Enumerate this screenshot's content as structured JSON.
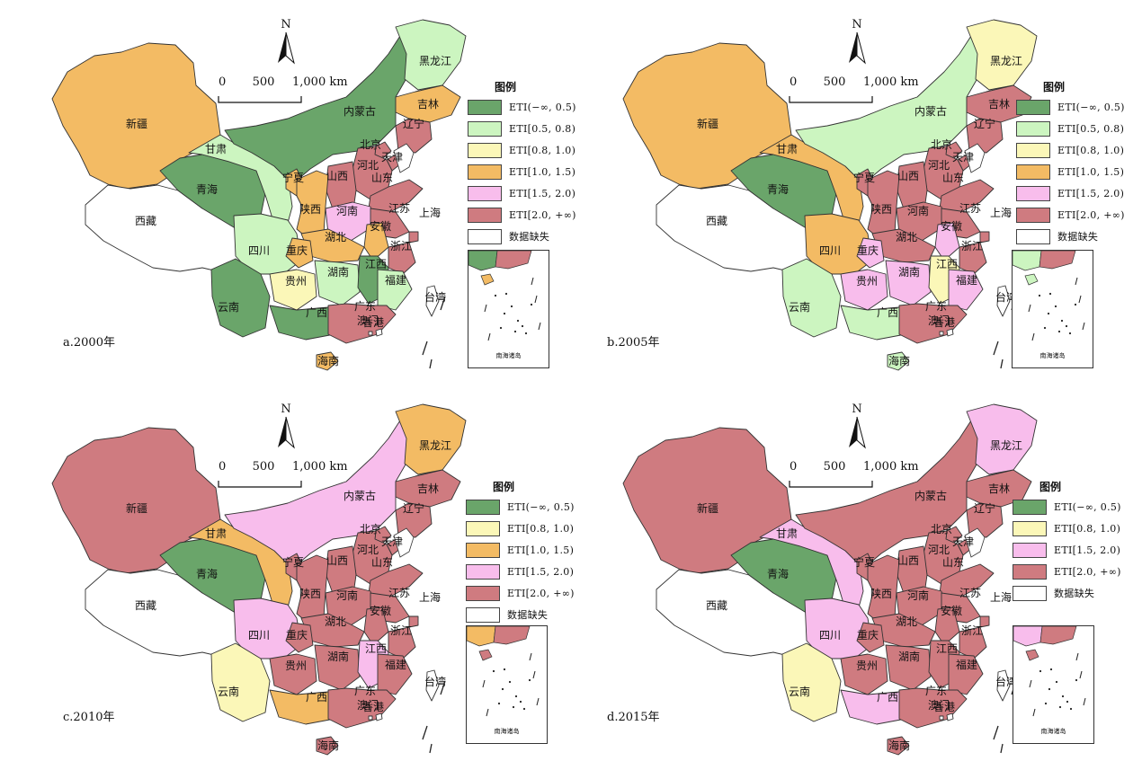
{
  "legend_title": "图例",
  "north_label": "N",
  "scale": {
    "labels": [
      "0",
      "500",
      "1,000 km"
    ]
  },
  "inset_caption": "南海诸岛",
  "categories": {
    "c1": {
      "label": "ETI(−∞, 0.5)",
      "color": "#6aa56a"
    },
    "c2": {
      "label": "ETI[0.5, 0.8)",
      "color": "#ccf5c0"
    },
    "c3": {
      "label": "ETI[0.8, 1.0)",
      "color": "#fbf7b8"
    },
    "c4": {
      "label": "ETI[1.0, 1.5)",
      "color": "#f3bb64"
    },
    "c5": {
      "label": "ETI[1.5, 2.0)",
      "color": "#f8bdec"
    },
    "c6": {
      "label": "ETI[2.0, +∞)",
      "color": "#cf7b80"
    },
    "nd": {
      "label": "数据缺失",
      "color": "#ffffff"
    }
  },
  "provinces": [
    "新疆",
    "西藏",
    "青海",
    "甘肃",
    "内蒙古",
    "黑龙江",
    "吉林",
    "辽宁",
    "北京",
    "天津",
    "河北",
    "山西",
    "山东",
    "宁夏",
    "陕西",
    "河南",
    "江苏",
    "上海",
    "安徽",
    "湖北",
    "四川",
    "重庆",
    "浙江",
    "湖南",
    "江西",
    "贵州",
    "福建",
    "云南",
    "广西",
    "广东",
    "台湾",
    "香港",
    "澳门",
    "海南"
  ],
  "panels": [
    {
      "label": "a.2000年",
      "legend": [
        "c1",
        "c2",
        "c3",
        "c4",
        "c5",
        "c6",
        "nd"
      ],
      "values": {
        "新疆": "c4",
        "西藏": "nd",
        "青海": "c1",
        "甘肃": "c2",
        "内蒙古": "c1",
        "黑龙江": "c2",
        "吉林": "c4",
        "辽宁": "c6",
        "北京": "c6",
        "天津": "c6",
        "河北": "c6",
        "山西": "c6",
        "山东": "c6",
        "宁夏": "c4",
        "陕西": "c4",
        "河南": "c5",
        "江苏": "c6",
        "上海": "c6",
        "安徽": "c4",
        "湖北": "c4",
        "四川": "c2",
        "重庆": "c4",
        "浙江": "c6",
        "湖南": "c2",
        "江西": "c1",
        "贵州": "c3",
        "福建": "c2",
        "云南": "c1",
        "广西": "c1",
        "广东": "c6",
        "台湾": "nd",
        "香港": "nd",
        "澳门": "nd",
        "海南": "c4"
      }
    },
    {
      "label": "b.2005年",
      "legend": [
        "c1",
        "c2",
        "c3",
        "c4",
        "c5",
        "c6",
        "nd"
      ],
      "values": {
        "新疆": "c4",
        "西藏": "nd",
        "青海": "c1",
        "甘肃": "c4",
        "内蒙古": "c2",
        "黑龙江": "c3",
        "吉林": "c6",
        "辽宁": "c6",
        "北京": "c6",
        "天津": "c6",
        "河北": "c6",
        "山西": "c6",
        "山东": "c6",
        "宁夏": "c6",
        "陕西": "c6",
        "河南": "c6",
        "江苏": "c6",
        "上海": "c6",
        "安徽": "c5",
        "湖北": "c6",
        "四川": "c4",
        "重庆": "c5",
        "浙江": "c6",
        "湖南": "c5",
        "江西": "c3",
        "贵州": "c5",
        "福建": "c5",
        "云南": "c2",
        "广西": "c2",
        "广东": "c6",
        "台湾": "nd",
        "香港": "nd",
        "澳门": "nd",
        "海南": "c2"
      }
    },
    {
      "label": "c.2010年",
      "legend": [
        "c1",
        "c3",
        "c4",
        "c5",
        "c6",
        "nd"
      ],
      "values": {
        "新疆": "c6",
        "西藏": "nd",
        "青海": "c1",
        "甘肃": "c4",
        "内蒙古": "c5",
        "黑龙江": "c4",
        "吉林": "c6",
        "辽宁": "c6",
        "北京": "c6",
        "天津": "c6",
        "河北": "c6",
        "山西": "c6",
        "山东": "c6",
        "宁夏": "c6",
        "陕西": "c6",
        "河南": "c6",
        "江苏": "c6",
        "上海": "c6",
        "安徽": "c6",
        "湖北": "c6",
        "四川": "c5",
        "重庆": "c6",
        "浙江": "c6",
        "湖南": "c6",
        "江西": "c5",
        "贵州": "c6",
        "福建": "c6",
        "云南": "c3",
        "广西": "c4",
        "广东": "c6",
        "台湾": "nd",
        "香港": "nd",
        "澳门": "nd",
        "海南": "c6"
      }
    },
    {
      "label": "d.2015年",
      "legend": [
        "c1",
        "c3",
        "c5",
        "c6",
        "nd"
      ],
      "values": {
        "新疆": "c6",
        "西藏": "nd",
        "青海": "c1",
        "甘肃": "c5",
        "内蒙古": "c6",
        "黑龙江": "c5",
        "吉林": "c6",
        "辽宁": "c6",
        "北京": "c6",
        "天津": "c6",
        "河北": "c6",
        "山西": "c6",
        "山东": "c6",
        "宁夏": "c6",
        "陕西": "c6",
        "河南": "c6",
        "江苏": "c6",
        "上海": "c6",
        "安徽": "c6",
        "湖北": "c6",
        "四川": "c5",
        "重庆": "c6",
        "浙江": "c6",
        "湖南": "c6",
        "江西": "c6",
        "贵州": "c6",
        "福建": "c6",
        "云南": "c3",
        "广西": "c5",
        "广东": "c6",
        "台湾": "nd",
        "香港": "nd",
        "澳门": "nd",
        "海南": "c6"
      }
    }
  ]
}
